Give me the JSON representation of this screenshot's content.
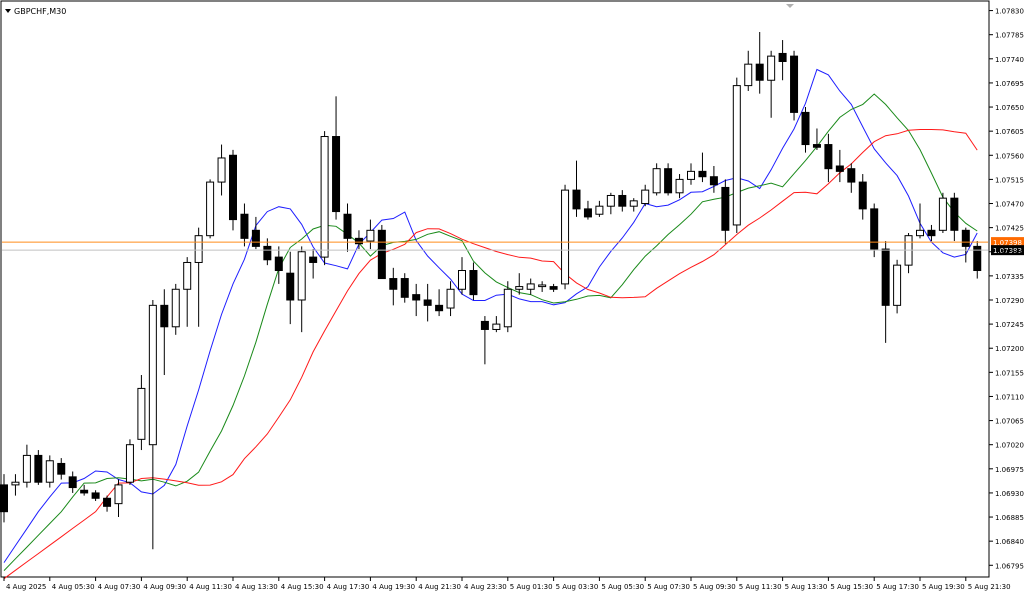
{
  "symbol_label": "GBPCHF,M30",
  "colors": {
    "background": "#ffffff",
    "frame": "#000000",
    "candle_bull_fill": "#ffffff",
    "candle_bear_fill": "#000000",
    "candle_outline": "#000000",
    "ma_fast": "#1e1eff",
    "ma_mid": "#1a8a1a",
    "ma_slow": "#ff1a1a",
    "bid_line": "#ff8c1a",
    "ask_line": "#c0c0c0",
    "bid_tag": "#ff6a00",
    "ask_tag": "#000000"
  },
  "price_axis": {
    "labels": [
      "1.07830",
      "1.07785",
      "1.07740",
      "1.07695",
      "1.07650",
      "1.07605",
      "1.07560",
      "1.07515",
      "1.07470",
      "1.07425",
      "1.07380",
      "1.07335",
      "1.07290",
      "1.07245",
      "1.07200",
      "1.07155",
      "1.07110",
      "1.07065",
      "1.07020",
      "1.06975",
      "1.06930",
      "1.06885",
      "1.06840",
      "1.06795"
    ],
    "bid_tag": "1.07398",
    "ask_tag": "1.07383"
  },
  "time_axis": {
    "labels": [
      "4 Aug 2025",
      "4 Aug 05:30",
      "4 Aug 07:30",
      "4 Aug 09:30",
      "4 Aug 11:30",
      "4 Aug 13:30",
      "4 Aug 15:30",
      "4 Aug 17:30",
      "4 Aug 19:30",
      "4 Aug 21:30",
      "4 Aug 23:30",
      "5 Aug 01:30",
      "5 Aug 03:30",
      "5 Aug 05:30",
      "5 Aug 07:30",
      "5 Aug 09:30",
      "5 Aug 11:30",
      "5 Aug 13:30",
      "5 Aug 15:30",
      "5 Aug 17:30",
      "5 Aug 19:30",
      "5 Aug 21:30"
    ]
  },
  "chart_data": {
    "type": "candlestick",
    "title": "GBPCHF,M30",
    "ylim": [
      1.0678,
      1.0785
    ],
    "bid": 1.07398,
    "ask": 1.07383,
    "candles": [
      [
        1.06945,
        1.06965,
        1.06875,
        1.06895
      ],
      [
        1.06945,
        1.06965,
        1.06925,
        1.0695
      ],
      [
        1.0695,
        1.0702,
        1.0694,
        1.07
      ],
      [
        1.07,
        1.0701,
        1.06945,
        1.0695
      ],
      [
        1.0695,
        1.07,
        1.0694,
        1.0699
      ],
      [
        1.06985,
        1.06995,
        1.06955,
        1.06965
      ],
      [
        1.0696,
        1.0697,
        1.0693,
        1.0694
      ],
      [
        1.06935,
        1.06945,
        1.06925,
        1.0693
      ],
      [
        1.0693,
        1.06935,
        1.06915,
        1.0692
      ],
      [
        1.0692,
        1.06925,
        1.06895,
        1.06905
      ],
      [
        1.0691,
        1.06955,
        1.06885,
        1.06945
      ],
      [
        1.0695,
        1.0703,
        1.06945,
        1.0702
      ],
      [
        1.0703,
        1.0715,
        1.0701,
        1.07125
      ],
      [
        1.0702,
        1.0729,
        1.06825,
        1.0728
      ],
      [
        1.0728,
        1.0731,
        1.0715,
        1.0724
      ],
      [
        1.0724,
        1.0732,
        1.07225,
        1.0731
      ],
      [
        1.0731,
        1.0737,
        1.0724,
        1.0736
      ],
      [
        1.0736,
        1.07425,
        1.0724,
        1.0741
      ],
      [
        1.0741,
        1.07515,
        1.07405,
        1.0751
      ],
      [
        1.0751,
        1.0758,
        1.07485,
        1.07555
      ],
      [
        1.0756,
        1.0757,
        1.0742,
        1.0744
      ],
      [
        1.0745,
        1.0747,
        1.0739,
        1.07405
      ],
      [
        1.0742,
        1.07445,
        1.07385,
        1.0739
      ],
      [
        1.0739,
        1.07405,
        1.07355,
        1.07365
      ],
      [
        1.0737,
        1.0739,
        1.0732,
        1.07345
      ],
      [
        1.0734,
        1.0738,
        1.07245,
        1.0729
      ],
      [
        1.0729,
        1.0739,
        1.0723,
        1.0738
      ],
      [
        1.0737,
        1.07385,
        1.0733,
        1.0736
      ],
      [
        1.0737,
        1.07605,
        1.07355,
        1.07595
      ],
      [
        1.07595,
        1.0767,
        1.0744,
        1.07455
      ],
      [
        1.0745,
        1.0747,
        1.0738,
        1.07405
      ],
      [
        1.07405,
        1.0742,
        1.07385,
        1.07395
      ],
      [
        1.074,
        1.0744,
        1.07385,
        1.0742
      ],
      [
        1.0742,
        1.0743,
        1.0733,
        1.0733
      ],
      [
        1.0733,
        1.0735,
        1.0728,
        1.0731
      ],
      [
        1.0733,
        1.0734,
        1.07285,
        1.07295
      ],
      [
        1.073,
        1.0732,
        1.0726,
        1.0729
      ],
      [
        1.0729,
        1.0732,
        1.0725,
        1.0728
      ],
      [
        1.0728,
        1.0731,
        1.0726,
        1.0727
      ],
      [
        1.07275,
        1.07325,
        1.0726,
        1.0731
      ],
      [
        1.0731,
        1.0737,
        1.073,
        1.07345
      ],
      [
        1.07345,
        1.0736,
        1.0729,
        1.073
      ],
      [
        1.0725,
        1.0726,
        1.0717,
        1.07235
      ],
      [
        1.07235,
        1.0726,
        1.0723,
        1.07245
      ],
      [
        1.0724,
        1.07325,
        1.0723,
        1.0731
      ],
      [
        1.0731,
        1.0734,
        1.073,
        1.07315
      ],
      [
        1.0731,
        1.0733,
        1.073,
        1.0732
      ],
      [
        1.07315,
        1.07325,
        1.07305,
        1.07318
      ],
      [
        1.07315,
        1.0732,
        1.07305,
        1.0731
      ],
      [
        1.0732,
        1.07505,
        1.0731,
        1.07495
      ],
      [
        1.07495,
        1.0755,
        1.07445,
        1.0746
      ],
      [
        1.0746,
        1.07475,
        1.0744,
        1.07445
      ],
      [
        1.0745,
        1.07475,
        1.07445,
        1.07465
      ],
      [
        1.07465,
        1.0749,
        1.0745,
        1.07485
      ],
      [
        1.07485,
        1.07495,
        1.07455,
        1.07465
      ],
      [
        1.07465,
        1.0748,
        1.07455,
        1.07475
      ],
      [
        1.0747,
        1.07505,
        1.07465,
        1.07495
      ],
      [
        1.0749,
        1.07545,
        1.07485,
        1.07535
      ],
      [
        1.07535,
        1.07545,
        1.07485,
        1.0749
      ],
      [
        1.0749,
        1.07525,
        1.0748,
        1.07515
      ],
      [
        1.07515,
        1.07545,
        1.07505,
        1.0753
      ],
      [
        1.0753,
        1.07565,
        1.0751,
        1.0752
      ],
      [
        1.0752,
        1.0754,
        1.0749,
        1.07505
      ],
      [
        1.075,
        1.07515,
        1.07395,
        1.0742
      ],
      [
        1.0743,
        1.07705,
        1.07415,
        1.0769
      ],
      [
        1.0769,
        1.07755,
        1.0768,
        1.0773
      ],
      [
        1.0773,
        1.0779,
        1.07675,
        1.077
      ],
      [
        1.077,
        1.07755,
        1.0763,
        1.07745
      ],
      [
        1.0775,
        1.07775,
        1.077,
        1.07735
      ],
      [
        1.07745,
        1.07755,
        1.07625,
        1.0764
      ],
      [
        1.0764,
        1.0765,
        1.07565,
        1.0758
      ],
      [
        1.0758,
        1.0761,
        1.0757,
        1.07575
      ],
      [
        1.0758,
        1.076,
        1.0751,
        1.07535
      ],
      [
        1.0754,
        1.0757,
        1.0751,
        1.0753
      ],
      [
        1.07535,
        1.07545,
        1.0749,
        1.0751
      ],
      [
        1.0751,
        1.07525,
        1.0744,
        1.0746
      ],
      [
        1.0746,
        1.0747,
        1.0737,
        1.07385
      ],
      [
        1.07385,
        1.074,
        1.0721,
        1.0728
      ],
      [
        1.0728,
        1.07365,
        1.07265,
        1.07355
      ],
      [
        1.07355,
        1.07415,
        1.0734,
        1.0741
      ],
      [
        1.0741,
        1.0747,
        1.07405,
        1.0742
      ],
      [
        1.0742,
        1.0743,
        1.074,
        1.0741
      ],
      [
        1.0742,
        1.0749,
        1.07415,
        1.0748
      ],
      [
        1.0748,
        1.0749,
        1.074,
        1.0742
      ],
      [
        1.0742,
        1.07425,
        1.0736,
        1.0739
      ],
      [
        1.0739,
        1.074,
        1.0733,
        1.07345
      ]
    ]
  }
}
